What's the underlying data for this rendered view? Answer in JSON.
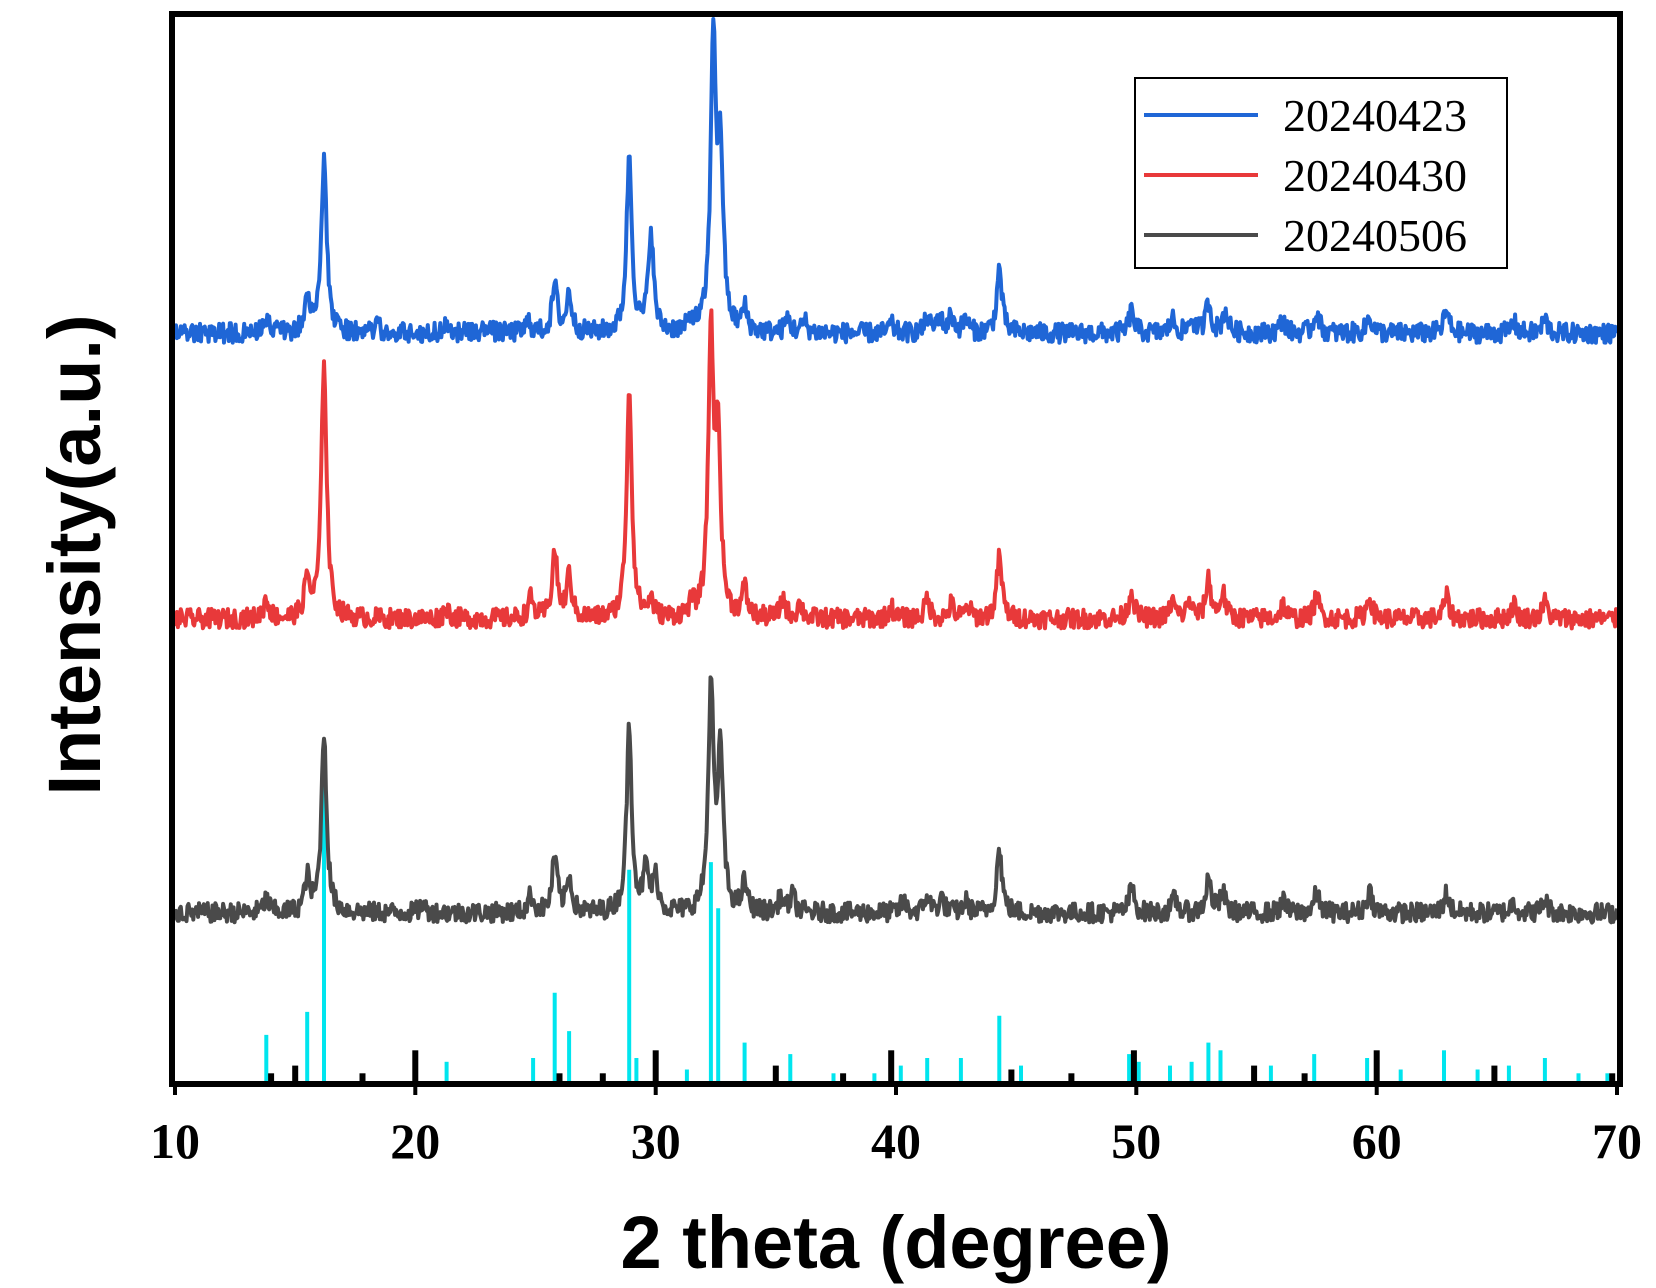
{
  "chart_data": {
    "type": "line",
    "xlabel": "2 theta (degree)",
    "ylabel": "Intensity(a.u.)",
    "xlim": [
      10,
      70
    ],
    "x_ticks": [
      "10",
      "20",
      "30",
      "40",
      "50",
      "60",
      "70"
    ],
    "y_ticks": [],
    "grid": false,
    "legend_position": "top-right",
    "y_scale": "arbitrary units, patterns vertically offset",
    "series": [
      {
        "name": "20240423",
        "color": "#1f66d6",
        "baseline": 2.07,
        "noise": 0.035,
        "peaks": [
          [
            13.8,
            0.06
          ],
          [
            15.5,
            0.12
          ],
          [
            16.2,
            0.62
          ],
          [
            18.4,
            0.03
          ],
          [
            21.3,
            0.04
          ],
          [
            23.0,
            0.03
          ],
          [
            24.7,
            0.04
          ],
          [
            25.8,
            0.17
          ],
          [
            26.4,
            0.14
          ],
          [
            28.9,
            0.63
          ],
          [
            29.8,
            0.36
          ],
          [
            31.5,
            0.04
          ],
          [
            32.4,
            1.05
          ],
          [
            32.7,
            0.6
          ],
          [
            33.7,
            0.08
          ],
          [
            35.5,
            0.05
          ],
          [
            36.2,
            0.04
          ],
          [
            39.8,
            0.03
          ],
          [
            41.3,
            0.05
          ],
          [
            41.8,
            0.06
          ],
          [
            42.3,
            0.06
          ],
          [
            42.9,
            0.05
          ],
          [
            44.3,
            0.23
          ],
          [
            49.8,
            0.08
          ],
          [
            51.5,
            0.05
          ],
          [
            52.3,
            0.05
          ],
          [
            53.0,
            0.11
          ],
          [
            53.7,
            0.08
          ],
          [
            56.1,
            0.05
          ],
          [
            57.5,
            0.08
          ],
          [
            59.7,
            0.06
          ],
          [
            62.9,
            0.08
          ],
          [
            65.7,
            0.04
          ],
          [
            67.0,
            0.05
          ]
        ]
      },
      {
        "name": "20240430",
        "color": "#e8393a",
        "baseline": 1.05,
        "noise": 0.035,
        "peaks": [
          [
            13.8,
            0.07
          ],
          [
            15.5,
            0.14
          ],
          [
            16.2,
            0.92
          ],
          [
            21.3,
            0.04
          ],
          [
            24.8,
            0.07
          ],
          [
            25.8,
            0.24
          ],
          [
            26.4,
            0.15
          ],
          [
            28.9,
            0.82
          ],
          [
            29.8,
            0.06
          ],
          [
            31.5,
            0.04
          ],
          [
            32.3,
            1.0
          ],
          [
            32.6,
            0.6
          ],
          [
            33.7,
            0.1
          ],
          [
            35.3,
            0.07
          ],
          [
            36.0,
            0.05
          ],
          [
            39.8,
            0.04
          ],
          [
            41.3,
            0.07
          ],
          [
            42.3,
            0.05
          ],
          [
            43.0,
            0.04
          ],
          [
            44.3,
            0.22
          ],
          [
            49.8,
            0.1
          ],
          [
            51.5,
            0.06
          ],
          [
            52.2,
            0.06
          ],
          [
            53.0,
            0.14
          ],
          [
            53.6,
            0.09
          ],
          [
            56.1,
            0.05
          ],
          [
            57.5,
            0.08
          ],
          [
            59.7,
            0.08
          ],
          [
            62.9,
            0.08
          ],
          [
            65.7,
            0.05
          ],
          [
            67.0,
            0.06
          ]
        ]
      },
      {
        "name": "20240506",
        "color": "#4a4a4a",
        "baseline": 0.0,
        "noise": 0.035,
        "peaks": [
          [
            13.8,
            0.05
          ],
          [
            15.5,
            0.12
          ],
          [
            16.2,
            0.64
          ],
          [
            20.3,
            0.03
          ],
          [
            24.8,
            0.06
          ],
          [
            25.8,
            0.2
          ],
          [
            26.4,
            0.12
          ],
          [
            28.9,
            0.66
          ],
          [
            29.6,
            0.15
          ],
          [
            30.0,
            0.12
          ],
          [
            32.3,
            0.8
          ],
          [
            32.7,
            0.56
          ],
          [
            33.7,
            0.1
          ],
          [
            35.2,
            0.05
          ],
          [
            35.7,
            0.06
          ],
          [
            40.3,
            0.04
          ],
          [
            41.3,
            0.06
          ],
          [
            41.9,
            0.05
          ],
          [
            42.9,
            0.04
          ],
          [
            44.3,
            0.23
          ],
          [
            49.8,
            0.09
          ],
          [
            51.6,
            0.05
          ],
          [
            53.0,
            0.12
          ],
          [
            53.6,
            0.07
          ],
          [
            56.1,
            0.04
          ],
          [
            57.5,
            0.07
          ],
          [
            59.7,
            0.08
          ],
          [
            62.9,
            0.07
          ],
          [
            65.7,
            0.04
          ],
          [
            67.0,
            0.05
          ]
        ]
      }
    ],
    "reference_patterns": [
      {
        "name": "",
        "color": "#00e5ee",
        "sticks": [
          [
            13.8,
            0.12
          ],
          [
            15.5,
            0.18
          ],
          [
            16.2,
            0.78
          ],
          [
            21.3,
            0.05
          ],
          [
            24.9,
            0.06
          ],
          [
            25.8,
            0.23
          ],
          [
            26.4,
            0.13
          ],
          [
            28.9,
            0.55
          ],
          [
            29.2,
            0.06
          ],
          [
            30.0,
            0.07
          ],
          [
            31.3,
            0.03
          ],
          [
            32.3,
            0.57
          ],
          [
            32.6,
            0.45
          ],
          [
            33.7,
            0.1
          ],
          [
            35.6,
            0.07
          ],
          [
            37.4,
            0.02
          ],
          [
            39.1,
            0.02
          ],
          [
            40.2,
            0.04
          ],
          [
            41.3,
            0.06
          ],
          [
            42.7,
            0.06
          ],
          [
            44.3,
            0.17
          ],
          [
            45.2,
            0.04
          ],
          [
            49.7,
            0.07
          ],
          [
            50.1,
            0.05
          ],
          [
            51.4,
            0.04
          ],
          [
            52.3,
            0.05
          ],
          [
            53.0,
            0.1
          ],
          [
            53.5,
            0.08
          ],
          [
            55.6,
            0.04
          ],
          [
            57.4,
            0.07
          ],
          [
            59.6,
            0.06
          ],
          [
            61.0,
            0.03
          ],
          [
            62.8,
            0.08
          ],
          [
            64.2,
            0.03
          ],
          [
            65.5,
            0.04
          ],
          [
            67.0,
            0.06
          ],
          [
            68.4,
            0.02
          ],
          [
            69.6,
            0.02
          ]
        ]
      },
      {
        "name": "",
        "color": "#000000",
        "sticks": [
          [
            14.0,
            0.02
          ],
          [
            15.0,
            0.04
          ],
          [
            17.8,
            0.02
          ],
          [
            20.0,
            0.08
          ],
          [
            26.0,
            0.02
          ],
          [
            27.8,
            0.02
          ],
          [
            30.0,
            0.08
          ],
          [
            35.0,
            0.04
          ],
          [
            37.8,
            0.02
          ],
          [
            39.8,
            0.08
          ],
          [
            44.8,
            0.03
          ],
          [
            47.3,
            0.02
          ],
          [
            49.9,
            0.08
          ],
          [
            54.9,
            0.04
          ],
          [
            57.0,
            0.02
          ],
          [
            60.0,
            0.08
          ],
          [
            64.9,
            0.04
          ],
          [
            69.8,
            0.02
          ]
        ]
      }
    ]
  }
}
